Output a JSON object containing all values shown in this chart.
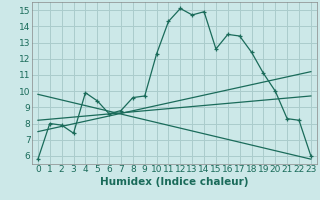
{
  "xlabel": "Humidex (Indice chaleur)",
  "ylabel": "",
  "xlim": [
    -0.5,
    23.5
  ],
  "ylim": [
    5.5,
    15.5
  ],
  "xticks": [
    0,
    1,
    2,
    3,
    4,
    5,
    6,
    7,
    8,
    9,
    10,
    11,
    12,
    13,
    14,
    15,
    16,
    17,
    18,
    19,
    20,
    21,
    22,
    23
  ],
  "yticks": [
    6,
    7,
    8,
    9,
    10,
    11,
    12,
    13,
    14,
    15
  ],
  "bg_color": "#cce8e8",
  "grid_color": "#aacccc",
  "line_color": "#1a6b5a",
  "curve1_x": [
    0,
    1,
    2,
    3,
    4,
    5,
    6,
    7,
    8,
    9,
    10,
    11,
    12,
    13,
    14,
    15,
    16,
    17,
    18,
    19,
    20,
    21,
    22,
    23
  ],
  "curve1_y": [
    5.8,
    8.0,
    7.9,
    7.4,
    9.9,
    9.4,
    8.6,
    8.8,
    9.6,
    9.7,
    12.3,
    14.3,
    15.1,
    14.7,
    14.9,
    12.6,
    13.5,
    13.4,
    12.4,
    11.1,
    10.0,
    8.3,
    8.2,
    6.0
  ],
  "line2_x": [
    0,
    23
  ],
  "line2_y": [
    7.5,
    11.2
  ],
  "line3_x": [
    0,
    23
  ],
  "line3_y": [
    8.2,
    9.7
  ],
  "line4_x": [
    0,
    23
  ],
  "line4_y": [
    9.8,
    5.8
  ],
  "tick_fontsize": 6.5,
  "xlabel_fontsize": 7.5
}
